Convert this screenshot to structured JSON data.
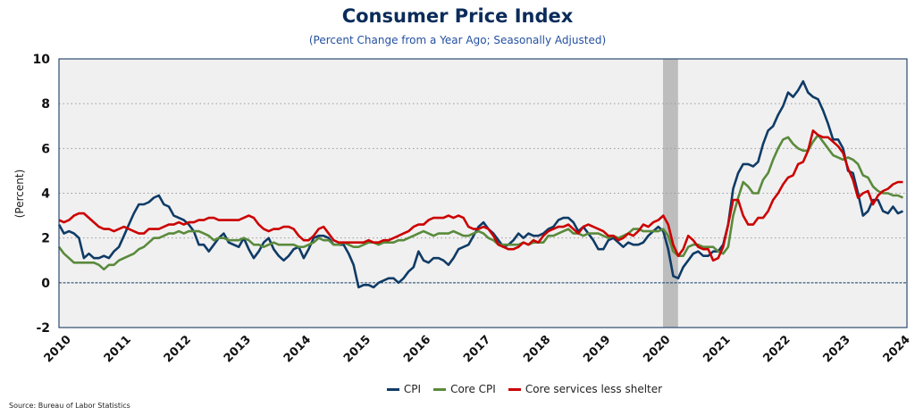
{
  "chart_data": {
    "type": "line",
    "title": "Consumer Price Index",
    "subtitle": "(Percent Change from a Year Ago; Seasonally Adjusted)",
    "xlabel": "",
    "ylabel": "(Percent)",
    "ylim": [
      -2,
      10
    ],
    "yticks": [
      -2,
      0,
      2,
      4,
      6,
      8,
      10
    ],
    "xlim": [
      2010.0,
      2024.15
    ],
    "xticks": [
      "2010",
      "2011",
      "2012",
      "2013",
      "2014",
      "2015",
      "2016",
      "2017",
      "2018",
      "2019",
      "2020",
      "2021",
      "2022",
      "2023",
      "2024"
    ],
    "grid": "horizontal-dotted",
    "zero_line": true,
    "recession_shading": [
      [
        2020.08,
        2020.33
      ]
    ],
    "legend_position": "bottom",
    "x_start": "2010-01",
    "frequency": "monthly",
    "series": [
      {
        "name": "CPI",
        "color": "#0f3b66",
        "values": [
          2.6,
          2.2,
          2.3,
          2.2,
          2.0,
          1.1,
          1.3,
          1.1,
          1.1,
          1.2,
          1.1,
          1.4,
          1.6,
          2.1,
          2.6,
          3.1,
          3.5,
          3.5,
          3.6,
          3.8,
          3.9,
          3.5,
          3.4,
          3.0,
          2.9,
          2.8,
          2.6,
          2.3,
          1.7,
          1.7,
          1.4,
          1.7,
          2.0,
          2.2,
          1.8,
          1.7,
          1.6,
          2.0,
          1.5,
          1.1,
          1.4,
          1.8,
          2.0,
          1.5,
          1.2,
          1.0,
          1.2,
          1.5,
          1.6,
          1.1,
          1.5,
          2.0,
          2.1,
          2.1,
          2.0,
          1.7,
          1.7,
          1.7,
          1.3,
          0.8,
          -0.2,
          -0.1,
          -0.1,
          -0.2,
          0.0,
          0.1,
          0.2,
          0.2,
          0.0,
          0.2,
          0.5,
          0.7,
          1.4,
          1.0,
          0.9,
          1.1,
          1.1,
          1.0,
          0.8,
          1.1,
          1.5,
          1.6,
          1.7,
          2.1,
          2.5,
          2.7,
          2.4,
          2.2,
          1.9,
          1.6,
          1.7,
          1.9,
          2.2,
          2.0,
          2.2,
          2.1,
          2.1,
          2.2,
          2.4,
          2.5,
          2.8,
          2.9,
          2.9,
          2.7,
          2.3,
          2.5,
          2.2,
          1.9,
          1.5,
          1.5,
          1.9,
          2.0,
          1.8,
          1.6,
          1.8,
          1.7,
          1.7,
          1.8,
          2.1,
          2.3,
          2.5,
          2.3,
          1.5,
          0.3,
          0.2,
          0.7,
          1.0,
          1.3,
          1.4,
          1.2,
          1.2,
          1.4,
          1.4,
          1.7,
          2.6,
          4.2,
          4.9,
          5.3,
          5.3,
          5.2,
          5.4,
          6.2,
          6.8,
          7.0,
          7.5,
          7.9,
          8.5,
          8.3,
          8.6,
          9.0,
          8.5,
          8.3,
          8.2,
          7.7,
          7.1,
          6.4,
          6.4,
          6.0,
          5.0,
          4.9,
          4.0,
          3.0,
          3.2,
          3.7,
          3.7,
          3.2,
          3.1,
          3.4,
          3.1,
          3.2
        ]
      },
      {
        "name": "Core CPI",
        "color": "#5a8a3c",
        "values": [
          1.6,
          1.3,
          1.1,
          0.9,
          0.9,
          0.9,
          0.9,
          0.9,
          0.8,
          0.6,
          0.8,
          0.8,
          1.0,
          1.1,
          1.2,
          1.3,
          1.5,
          1.6,
          1.8,
          2.0,
          2.0,
          2.1,
          2.2,
          2.2,
          2.3,
          2.2,
          2.3,
          2.3,
          2.3,
          2.2,
          2.1,
          1.9,
          2.0,
          2.0,
          1.9,
          1.9,
          1.9,
          2.0,
          1.9,
          1.7,
          1.7,
          1.6,
          1.7,
          1.8,
          1.7,
          1.7,
          1.7,
          1.7,
          1.6,
          1.6,
          1.7,
          1.8,
          2.0,
          1.9,
          1.9,
          1.7,
          1.7,
          1.8,
          1.7,
          1.6,
          1.6,
          1.7,
          1.8,
          1.8,
          1.7,
          1.8,
          1.8,
          1.8,
          1.9,
          1.9,
          2.0,
          2.1,
          2.2,
          2.3,
          2.2,
          2.1,
          2.2,
          2.2,
          2.2,
          2.3,
          2.2,
          2.1,
          2.1,
          2.2,
          2.3,
          2.2,
          2.0,
          1.9,
          1.7,
          1.7,
          1.7,
          1.7,
          1.7,
          1.8,
          1.7,
          1.8,
          1.8,
          1.8,
          2.1,
          2.1,
          2.2,
          2.3,
          2.4,
          2.2,
          2.2,
          2.1,
          2.2,
          2.2,
          2.2,
          2.1,
          2.0,
          2.1,
          2.0,
          2.1,
          2.2,
          2.4,
          2.4,
          2.3,
          2.3,
          2.3,
          2.3,
          2.4,
          2.1,
          1.4,
          1.2,
          1.2,
          1.6,
          1.7,
          1.7,
          1.6,
          1.6,
          1.6,
          1.4,
          1.3,
          1.6,
          3.0,
          3.8,
          4.5,
          4.3,
          4.0,
          4.0,
          4.6,
          4.9,
          5.5,
          6.0,
          6.4,
          6.5,
          6.2,
          6.0,
          5.9,
          5.9,
          6.3,
          6.6,
          6.3,
          6.0,
          5.7,
          5.6,
          5.5,
          5.6,
          5.5,
          5.3,
          4.8,
          4.7,
          4.3,
          4.1,
          4.0,
          4.0,
          3.9,
          3.9,
          3.8
        ]
      },
      {
        "name": "Core services less shelter",
        "color": "#cc0000",
        "values": [
          2.8,
          2.7,
          2.8,
          3.0,
          3.1,
          3.1,
          2.9,
          2.7,
          2.5,
          2.4,
          2.4,
          2.3,
          2.4,
          2.5,
          2.4,
          2.3,
          2.2,
          2.2,
          2.4,
          2.4,
          2.4,
          2.5,
          2.6,
          2.6,
          2.7,
          2.6,
          2.7,
          2.7,
          2.8,
          2.8,
          2.9,
          2.9,
          2.8,
          2.8,
          2.8,
          2.8,
          2.8,
          2.9,
          3.0,
          2.9,
          2.6,
          2.4,
          2.3,
          2.4,
          2.4,
          2.5,
          2.5,
          2.4,
          2.1,
          1.9,
          1.9,
          2.1,
          2.4,
          2.5,
          2.2,
          1.9,
          1.8,
          1.8,
          1.8,
          1.8,
          1.8,
          1.8,
          1.9,
          1.8,
          1.8,
          1.9,
          1.9,
          2.0,
          2.1,
          2.2,
          2.3,
          2.5,
          2.6,
          2.6,
          2.8,
          2.9,
          2.9,
          2.9,
          3.0,
          2.9,
          3.0,
          2.9,
          2.5,
          2.4,
          2.4,
          2.5,
          2.4,
          2.1,
          1.7,
          1.6,
          1.5,
          1.5,
          1.6,
          1.8,
          1.7,
          1.9,
          1.8,
          2.1,
          2.3,
          2.4,
          2.5,
          2.5,
          2.6,
          2.4,
          2.2,
          2.5,
          2.6,
          2.5,
          2.4,
          2.3,
          2.1,
          2.1,
          1.9,
          2.0,
          2.2,
          2.1,
          2.3,
          2.6,
          2.5,
          2.7,
          2.8,
          3.0,
          2.6,
          1.7,
          1.2,
          1.5,
          2.1,
          1.9,
          1.6,
          1.5,
          1.5,
          1.0,
          1.1,
          1.6,
          2.6,
          3.7,
          3.7,
          3.0,
          2.6,
          2.6,
          2.9,
          2.9,
          3.2,
          3.7,
          4.0,
          4.4,
          4.7,
          4.8,
          5.3,
          5.4,
          5.9,
          6.8,
          6.6,
          6.5,
          6.5,
          6.3,
          6.1,
          5.8,
          5.1,
          4.6,
          3.8,
          4.0,
          4.1,
          3.5,
          3.9,
          4.1,
          4.2,
          4.4,
          4.5,
          4.5
        ]
      }
    ]
  },
  "source": "Source: Bureau of Labor Statistics"
}
